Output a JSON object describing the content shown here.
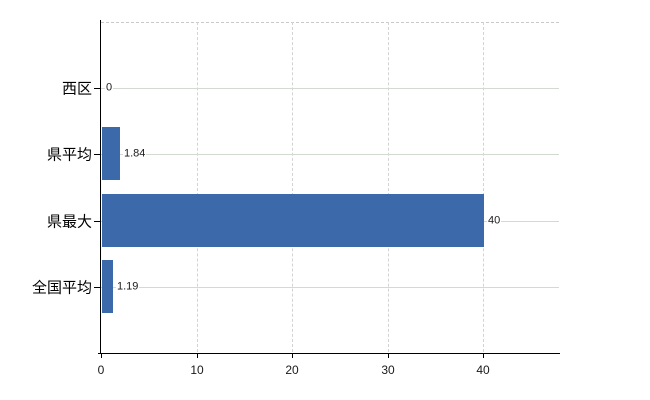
{
  "chart_data": {
    "type": "bar",
    "orientation": "horizontal",
    "title": "",
    "xlabel": "",
    "ylabel": "",
    "legend": "none",
    "categories": [
      "西区",
      "県平均",
      "県最大",
      "全国平均"
    ],
    "values": [
      0,
      1.84,
      40,
      1.19
    ],
    "value_labels": [
      "0",
      "1.84",
      "40",
      "1.19"
    ],
    "x_ticks": [
      0,
      10,
      20,
      30,
      40
    ],
    "x_tick_labels": [
      "0",
      "10",
      "20",
      "30",
      "40"
    ],
    "xlim": [
      0,
      48
    ],
    "grid": {
      "vertical": "dashed",
      "horizontal": "solid",
      "top_border": "dashed"
    },
    "colors": {
      "bar": "#3c69aa",
      "vertical_gridline": "#d3d3d3",
      "horizontal_gridline": "#d2dad2",
      "top_border": "#c9c9c9",
      "axis": "#000000",
      "text": "#000000",
      "background": "#ffffff"
    }
  }
}
